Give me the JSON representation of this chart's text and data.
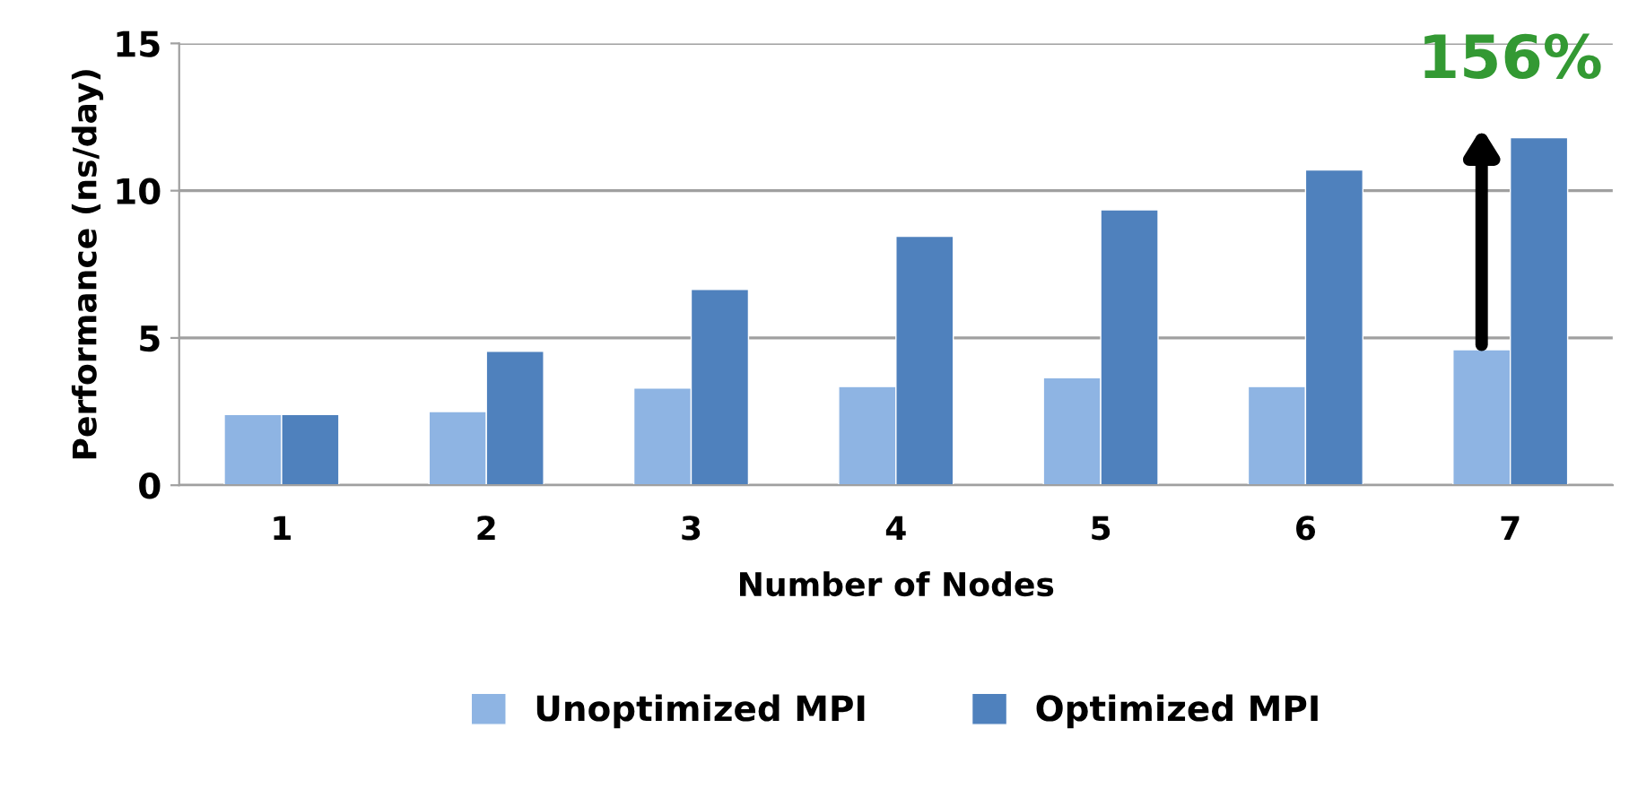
{
  "chart_data": {
    "type": "bar",
    "xlabel": "Number of Nodes",
    "ylabel": "Performance (ns/day)",
    "categories": [
      "1",
      "2",
      "3",
      "4",
      "5",
      "6",
      "7"
    ],
    "series": [
      {
        "name": "Unoptimized MPI",
        "color": "#8eb4e3",
        "values": [
          2.4,
          2.5,
          3.3,
          3.35,
          3.65,
          3.35,
          4.6
        ]
      },
      {
        "name": "Optimized MPI",
        "color": "#4f81bd",
        "values": [
          2.4,
          4.55,
          6.65,
          8.45,
          9.35,
          10.7,
          11.8
        ]
      }
    ],
    "ylim": [
      0,
      15
    ],
    "yticks": [
      0,
      5,
      10,
      15
    ],
    "grid": "y",
    "legend": "bottom",
    "annotations": [
      "156%"
    ]
  }
}
